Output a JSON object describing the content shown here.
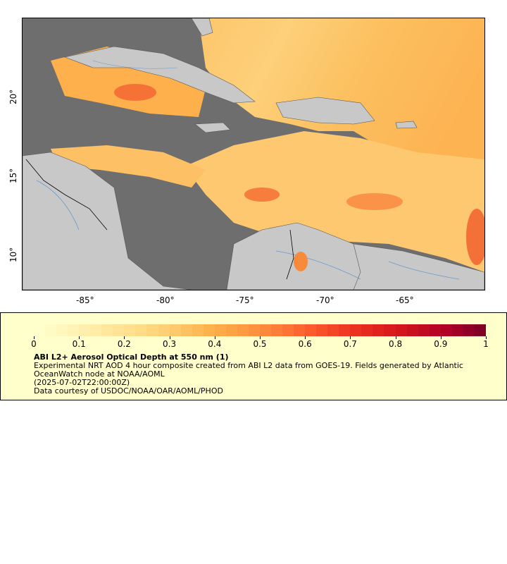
{
  "map": {
    "x_axis_labels": [
      "-85°",
      "-80°",
      "-75°",
      "-70°",
      "-65°"
    ],
    "y_axis_labels": [
      "20°",
      "15°",
      "10°"
    ],
    "colors": {
      "no_data": "#6e6e6e",
      "land": "#c8c8c8",
      "borders": "#555555",
      "rivers": "#6a9ac8"
    }
  },
  "legend": {
    "ticks": [
      "0",
      "0.1",
      "0.2",
      "0.3",
      "0.4",
      "0.5",
      "0.6",
      "0.7",
      "0.8",
      "0.9",
      "1"
    ],
    "title": "ABI L2+ Aerosol Optical Depth at 550 nm (1)",
    "description": "Experimental NRT AOD 4 hour composite created from ABI L2 data from GOES-19. Fields generated by Atlantic OceanWatch node at NOAA/AOML",
    "timestamp": "(2025-07-02T22:00:00Z)",
    "credit": "Data courtesy of USDOC/NOAA/OAR/AOML/PHOD",
    "colormap": [
      "#ffffcc",
      "#fff3b5",
      "#ffe89e",
      "#fedc88",
      "#fec96a",
      "#feb24c",
      "#fd9a42",
      "#fd7e38",
      "#fc5b2e",
      "#f03a24",
      "#e1211c",
      "#c9101f",
      "#b10026",
      "#800026"
    ]
  }
}
